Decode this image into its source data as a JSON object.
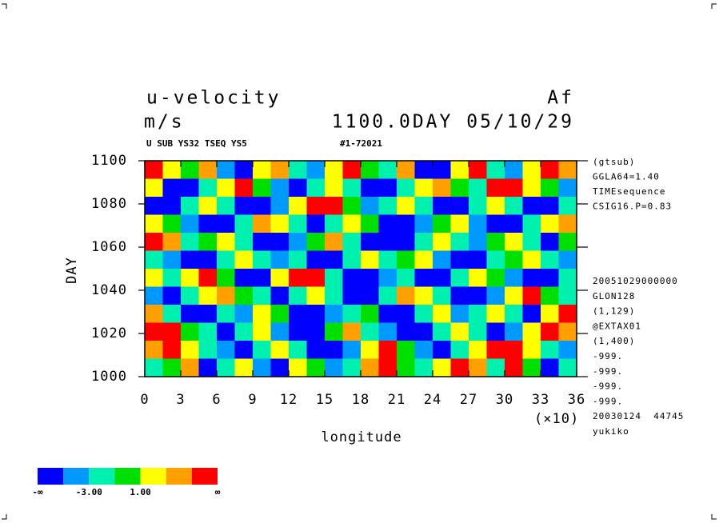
{
  "chart_data": {
    "type": "heatmap",
    "title": "u-velocity",
    "title_right": "Af",
    "subtitle": "m/s",
    "subtitle_right": "1100.0DAY 05/10/29",
    "header_left": "U SUB YS32 TSEQ YS5",
    "header_mid": "#1-72021",
    "x_label": "longitude",
    "x_scale_label": "(×10)",
    "y_label": "DAY",
    "xlim": [
      0,
      36
    ],
    "xticks": [
      0,
      3,
      6,
      9,
      12,
      15,
      18,
      21,
      24,
      27,
      30,
      33,
      36
    ],
    "ylim": [
      1000,
      1100
    ],
    "yticks": [
      1000,
      1020,
      1040,
      1060,
      1080,
      1100
    ],
    "info_top": [
      "(gtsub)",
      "GGLA64=1.40",
      "TIMEsequence",
      "CSIG16.P=0.83"
    ],
    "info_bottom": [
      "20051029000000",
      "GLON128",
      "(1,129)",
      "@EXTAX01",
      "(1,400)",
      "-999.",
      "-999.",
      "-999.",
      "-999.",
      "20030124  44745",
      "yukiko"
    ],
    "colors": [
      "#0000ff",
      "#0099ff",
      "#00f0b0",
      "#00e000",
      "#ffff00",
      "#ffa000",
      "#ff0000"
    ],
    "levels": [
      -5,
      {
        "value": -3,
        "label": "-3.00"
      },
      -1,
      {
        "value": 1,
        "label": "1.00"
      },
      3,
      5
    ],
    "colorbar_low": "-∞",
    "colorbar_high": "∞",
    "z": [
      [
        6,
        2,
        -1,
        3,
        -4,
        -6,
        1,
        4,
        -2,
        -5,
        2,
        6,
        -1,
        -3,
        3,
        -6,
        -7,
        1,
        5,
        -2,
        -4,
        2,
        6,
        3
      ],
      [
        1,
        -6,
        -7,
        -2,
        2,
        5,
        -1,
        -5,
        -7,
        -3,
        1,
        -2,
        -6,
        -7,
        -2,
        2,
        4,
        -1,
        -3,
        6,
        7,
        2,
        -1,
        -5
      ],
      [
        -7,
        -6,
        -3,
        1,
        -2,
        -6,
        -7,
        -4,
        2,
        6,
        5,
        -1,
        -4,
        -2,
        1,
        -3,
        -7,
        -6,
        -2,
        1,
        -3,
        -6,
        -7,
        -2
      ],
      [
        2,
        -1,
        -5,
        -7,
        -6,
        -2,
        3,
        1,
        -3,
        -6,
        -2,
        2,
        -1,
        -6,
        -7,
        -5,
        -1,
        2,
        -4,
        -7,
        -6,
        -3,
        1,
        4
      ],
      [
        5,
        3,
        -2,
        -1,
        2,
        -3,
        -6,
        -7,
        -5,
        -1,
        3,
        -2,
        -6,
        -7,
        -6,
        -3,
        1,
        -2,
        -5,
        -1,
        2,
        -3,
        -6,
        -1
      ],
      [
        -2,
        -5,
        -7,
        -6,
        -3,
        1,
        -2,
        -5,
        -3,
        -7,
        -6,
        -2,
        1,
        -3,
        -1,
        2,
        -5,
        -7,
        -6,
        -3,
        -1,
        1,
        -2,
        -5
      ],
      [
        1,
        -3,
        2,
        5,
        -1,
        -6,
        -7,
        2,
        6,
        7,
        -2,
        -6,
        -7,
        -4,
        -2,
        -6,
        -7,
        -3,
        2,
        -1,
        -5,
        -7,
        -6,
        -2
      ],
      [
        -4,
        -6,
        -2,
        1,
        4,
        -1,
        -3,
        -6,
        -2,
        1,
        -3,
        -7,
        -6,
        -2,
        3,
        1,
        -2,
        -6,
        -7,
        -4,
        2,
        5,
        -1,
        -3
      ],
      [
        3,
        -2,
        -6,
        -7,
        -3,
        -5,
        2,
        -1,
        -6,
        -7,
        -5,
        -2,
        -1,
        -6,
        -7,
        -3,
        1,
        -4,
        -2,
        2,
        -3,
        -6,
        1,
        5
      ],
      [
        6,
        5,
        -1,
        -3,
        -6,
        -2,
        1,
        -5,
        -7,
        -6,
        -1,
        3,
        -2,
        -5,
        -7,
        -6,
        -2,
        1,
        -3,
        -6,
        -4,
        2,
        6,
        3
      ],
      [
        4,
        6,
        2,
        -2,
        -5,
        -7,
        -3,
        1,
        -2,
        -6,
        -7,
        -4,
        2,
        5,
        -1,
        -5,
        -7,
        -3,
        2,
        6,
        7,
        1,
        -2,
        -5
      ],
      [
        -3,
        -1,
        3,
        -6,
        -2,
        1,
        -4,
        -6,
        2,
        -1,
        -5,
        -2,
        3,
        6,
        -1,
        -3,
        2,
        7,
        4,
        -2,
        5,
        -1,
        -6,
        -3
      ]
    ]
  }
}
